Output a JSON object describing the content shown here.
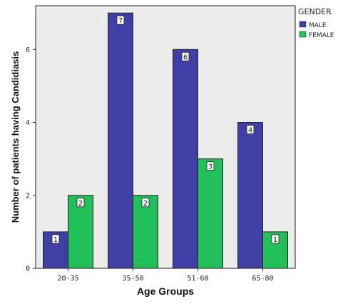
{
  "chart_data": {
    "type": "bar",
    "categories": [
      "20-35",
      "35-50",
      "51-60",
      "65-80"
    ],
    "series": [
      {
        "name": "MALE",
        "values": [
          1,
          7,
          6,
          4
        ],
        "color": "#3f3fa6"
      },
      {
        "name": "FEMALE",
        "values": [
          2,
          2,
          3,
          1
        ],
        "color": "#22c05a"
      }
    ],
    "xlabel": "Age Groups",
    "ylabel": "Number of patients having Candidiasis",
    "ylim": [
      0,
      7.2
    ],
    "yticks": [
      0,
      2,
      4,
      6
    ],
    "legend_title": "GENDER",
    "legend_position": "right",
    "grid": false,
    "plot_background": "#ececec"
  }
}
